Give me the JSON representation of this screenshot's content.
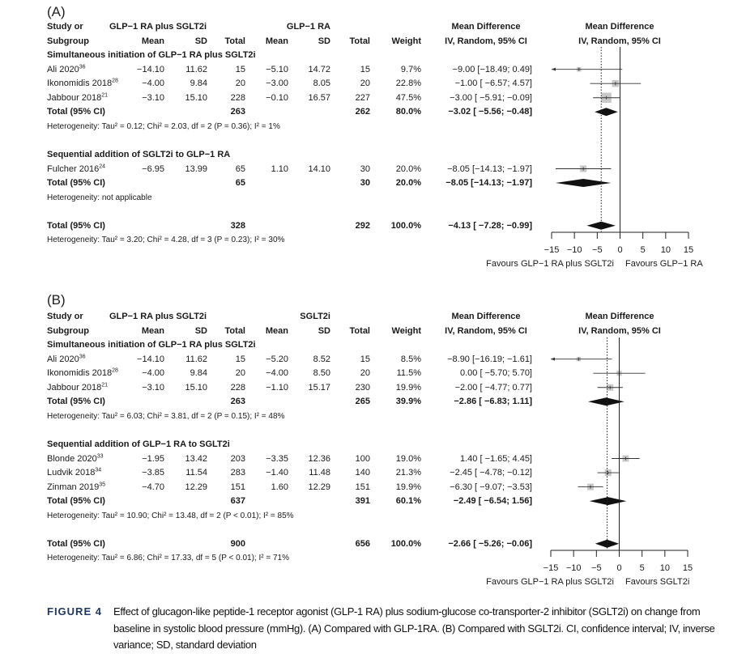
{
  "panels": [
    {
      "label": "(A)",
      "header": {
        "study1": "Study or",
        "study2": "Subgroup",
        "group1": "GLP−1 RA plus SGLT2i",
        "group2": "GLP−1 RA",
        "mean": "Mean",
        "sd": "SD",
        "total": "Total",
        "weight": "Weight",
        "md1": "Mean Difference",
        "md2": "IV, Random, 95% CI"
      },
      "rows": [
        {
          "type": "subgroup",
          "label": "Simultaneous initiation of GLP−1 RA plus SGLT2i"
        },
        {
          "type": "study",
          "name": "Ali 2020",
          "ref": "36",
          "m1": "−14.10",
          "sd1": "11.62",
          "n1": "15",
          "m2": "−5.10",
          "sd2": "14.72",
          "n2": "15",
          "weight": "9.7%",
          "ci": "−9.00 [−18.49;  0.49]",
          "md": -9.0,
          "lo": -18.49,
          "hi": 0.49,
          "w": 9.7
        },
        {
          "type": "study",
          "name": "Ikonomidis 2018",
          "ref": "28",
          "m1": "−4.00",
          "sd1": "9.84",
          "n1": "20",
          "m2": "−3.00",
          "sd2": "8.05",
          "n2": "20",
          "weight": "22.8%",
          "ci": "−1.00 [ −6.57;  4.57]",
          "md": -1.0,
          "lo": -6.57,
          "hi": 4.57,
          "w": 22.8
        },
        {
          "type": "study",
          "name": "Jabbour 2018",
          "ref": "21",
          "m1": "−3.10",
          "sd1": "15.10",
          "n1": "228",
          "m2": "−0.10",
          "sd2": "16.57",
          "n2": "227",
          "weight": "47.5%",
          "ci": "−3.00 [ −5.91; −0.09]",
          "md": -3.0,
          "lo": -5.91,
          "hi": -0.09,
          "w": 47.5
        },
        {
          "type": "total",
          "label": "Total (95% CI)",
          "n1": "263",
          "n2": "262",
          "weight": "80.0%",
          "ci": "−3.02 [ −5.56; −0.48]",
          "md": -3.02,
          "lo": -5.56,
          "hi": -0.48
        },
        {
          "type": "het",
          "text": "Heterogeneity: Tau² = 0.12; Chi² = 2.03, df = 2 (P = 0.36); I² = 1%"
        },
        {
          "type": "blank"
        },
        {
          "type": "subgroup",
          "label": "Sequential addition of SGLT2i to GLP−1 RA"
        },
        {
          "type": "study",
          "name": "Fulcher 2016",
          "ref": "24",
          "m1": "−6.95",
          "sd1": "13.99",
          "n1": "65",
          "m2": "1.10",
          "sd2": "14.10",
          "n2": "30",
          "weight": "20.0%",
          "ci": "−8.05 [−14.13; −1.97]",
          "md": -8.05,
          "lo": -14.13,
          "hi": -1.97,
          "w": 20.0
        },
        {
          "type": "total",
          "label": "Total (95% CI)",
          "n1": "65",
          "n2": "30",
          "weight": "20.0%",
          "ci": "−8.05 [−14.13; −1.97]",
          "md": -8.05,
          "lo": -14.13,
          "hi": -1.97
        },
        {
          "type": "het",
          "text": "Heterogeneity: not applicable"
        },
        {
          "type": "blank"
        },
        {
          "type": "total",
          "overall": true,
          "label": "Total (95% CI)",
          "n1": "328",
          "n2": "292",
          "weight": "100.0%",
          "ci": "−4.13 [ −7.28; −0.99]",
          "md": -4.13,
          "lo": -7.28,
          "hi": -0.99
        },
        {
          "type": "het",
          "text": "Heterogeneity: Tau² = 3.20; Chi² = 4.28, df = 3 (P = 0.23); I² = 30%"
        }
      ],
      "axis": {
        "ticks": [
          "−15",
          "−10",
          "−5",
          "0",
          "5",
          "10",
          "15"
        ],
        "left_label": "Favours GLP−1 RA plus SGLT2i",
        "right_label": "Favours GLP−1 RA"
      }
    },
    {
      "label": "(B)",
      "header": {
        "study1": "Study or",
        "study2": "Subgroup",
        "group1": "GLP−1 RA plus SGLT2i",
        "group2": "SGLT2i",
        "mean": "Mean",
        "sd": "SD",
        "total": "Total",
        "weight": "Weight",
        "md1": "Mean Difference",
        "md2": "IV, Random, 95% CI"
      },
      "rows": [
        {
          "type": "subgroup",
          "label": "Simultaneous initiation of GLP−1 RA plus SGLT2i"
        },
        {
          "type": "study",
          "name": "Ali 2020",
          "ref": "36",
          "m1": "−14.10",
          "sd1": "11.62",
          "n1": "15",
          "m2": "−5.20",
          "sd2": "8.52",
          "n2": "15",
          "weight": "8.5%",
          "ci": "−8.90 [−16.19; −1.61]",
          "md": -8.9,
          "lo": -16.19,
          "hi": -1.61,
          "w": 8.5
        },
        {
          "type": "study",
          "name": "Ikonomidis 2018",
          "ref": "28",
          "m1": "−4.00",
          "sd1": "9.84",
          "n1": "20",
          "m2": "−4.00",
          "sd2": "8.50",
          "n2": "20",
          "weight": "11.5%",
          "ci": "0.00 [ −5.70;  5.70]",
          "md": 0.0,
          "lo": -5.7,
          "hi": 5.7,
          "w": 11.5
        },
        {
          "type": "study",
          "name": "Jabbour 2018",
          "ref": "21",
          "m1": "−3.10",
          "sd1": "15.10",
          "n1": "228",
          "m2": "−1.10",
          "sd2": "15.17",
          "n2": "230",
          "weight": "19.9%",
          "ci": "−2.00 [ −4.77;  0.77]",
          "md": -2.0,
          "lo": -4.77,
          "hi": 0.77,
          "w": 19.9
        },
        {
          "type": "total",
          "label": "Total (95% CI)",
          "n1": "263",
          "n2": "265",
          "weight": "39.9%",
          "ci": "−2.86 [ −6.83;  1.11]",
          "md": -2.86,
          "lo": -6.83,
          "hi": 1.11
        },
        {
          "type": "het",
          "text": "Heterogeneity: Tau² = 6.03; Chi² = 3.81, df = 2 (P = 0.15); I² = 48%"
        },
        {
          "type": "blank"
        },
        {
          "type": "subgroup",
          "label": "Sequential addition of GLP−1 RA to SGLT2i"
        },
        {
          "type": "study",
          "name": "Blonde 2020",
          "ref": "33",
          "m1": "−1.95",
          "sd1": "13.42",
          "n1": "203",
          "m2": "−3.35",
          "sd2": "12.36",
          "n2": "100",
          "weight": "19.0%",
          "ci": "1.40 [ −1.65;  4.45]",
          "md": 1.4,
          "lo": -1.65,
          "hi": 4.45,
          "w": 19.0
        },
        {
          "type": "study",
          "name": "Ludvik 2018",
          "ref": "34",
          "m1": "−3.85",
          "sd1": "11.54",
          "n1": "283",
          "m2": "−1.40",
          "sd2": "11.48",
          "n2": "140",
          "weight": "21.3%",
          "ci": "−2.45 [ −4.78; −0.12]",
          "md": -2.45,
          "lo": -4.78,
          "hi": -0.12,
          "w": 21.3
        },
        {
          "type": "study",
          "name": "Zinman 2019",
          "ref": "35",
          "m1": "−4.70",
          "sd1": "12.29",
          "n1": "151",
          "m2": "1.60",
          "sd2": "12.29",
          "n2": "151",
          "weight": "19.9%",
          "ci": "−6.30 [ −9.07; −3.53]",
          "md": -6.3,
          "lo": -9.07,
          "hi": -3.53,
          "w": 19.9
        },
        {
          "type": "total",
          "label": "Total (95% CI)",
          "n1": "637",
          "n2": "391",
          "weight": "60.1%",
          "ci": "−2.49 [ −6.54;  1.56]",
          "md": -2.49,
          "lo": -6.54,
          "hi": 1.56
        },
        {
          "type": "het",
          "text": "Heterogeneity: Tau² = 10.90; Chi² = 13.48, df = 2 (P < 0.01); I² = 85%"
        },
        {
          "type": "blank"
        },
        {
          "type": "total",
          "overall": true,
          "label": "Total (95% CI)",
          "n1": "900",
          "n2": "656",
          "weight": "100.0%",
          "ci": "−2.66 [ −5.26; −0.06]",
          "md": -2.66,
          "lo": -5.26,
          "hi": -0.06
        },
        {
          "type": "het",
          "text": "Heterogeneity: Tau² = 6.86; Chi² = 17.33, df = 5 (P < 0.01); I² = 71%"
        }
      ],
      "axis": {
        "ticks": [
          "−15",
          "−10",
          "−5",
          "0",
          "5",
          "10",
          "15"
        ],
        "left_label": "Favours GLP−1 RA plus SGLT2i",
        "right_label": "Favours SGLT2i"
      }
    }
  ],
  "chart_data": {
    "type": "forest",
    "xlim": [
      -15,
      15
    ],
    "xticks": [
      -15,
      -10,
      -5,
      0,
      5,
      10,
      15
    ],
    "reference_line": 0,
    "colors": {
      "study_box": "#c8c8c8",
      "diamond": "#111111"
    }
  },
  "caption": {
    "label": "FIGURE 4",
    "text": "Effect of glucagon-like peptide-1 receptor agonist (GLP-1 RA) plus sodium-glucose co-transporter-2 inhibitor (SGLT2i) on change from baseline in systolic blood pressure (mmHg). (A) Compared with GLP-1RA. (B) Compared with SGLT2i. CI, confidence interval; IV, inverse variance; SD, standard deviation"
  }
}
